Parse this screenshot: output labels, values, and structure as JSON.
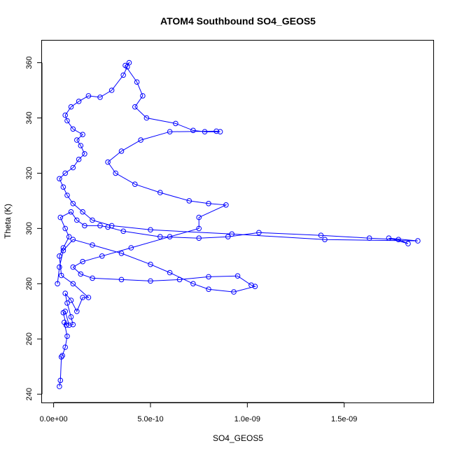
{
  "chart_data": {
    "type": "scatter",
    "title": "ATOM4 Southbound SO4_GEOS5",
    "xlabel": "SO4_GEOS5",
    "ylabel": "Theta (K)",
    "xlim": [
      -6e-11,
      1.96e-09
    ],
    "ylim": [
      237,
      368
    ],
    "x_ticks": [
      0,
      5e-10,
      1e-09,
      1.5e-09
    ],
    "x_tick_labels": [
      "0.0e+00",
      "5.0e-10",
      "1.0e-09",
      "1.5e-09"
    ],
    "y_ticks": [
      240,
      260,
      280,
      300,
      320,
      340,
      360
    ],
    "y_tick_labels": [
      "240",
      "260",
      "280",
      "300",
      "320",
      "340",
      "360"
    ],
    "grid": false,
    "legend": "none",
    "series": [
      {
        "color": "#0000ff",
        "marker": "open-circle",
        "line": true,
        "points": [
          [
            3e-11,
            242.8
          ],
          [
            3.5e-11,
            245.0
          ],
          [
            4e-11,
            253.5
          ],
          [
            4.5e-11,
            254.0
          ],
          [
            6e-11,
            257.0
          ],
          [
            7e-11,
            261.0
          ],
          [
            5.5e-11,
            266.0
          ],
          [
            6.5e-11,
            265.0
          ],
          [
            5e-11,
            269.5
          ],
          [
            6e-11,
            270.0
          ],
          [
            8e-11,
            265.0
          ],
          [
            1e-10,
            265.2
          ],
          [
            9e-11,
            268.0
          ],
          [
            7e-11,
            273.0
          ],
          [
            6e-11,
            276.5
          ],
          [
            9e-11,
            274.0
          ],
          [
            1.2e-10,
            270.0
          ],
          [
            1.5e-10,
            275.0
          ],
          [
            1.8e-10,
            275.0
          ],
          [
            1e-10,
            280.0
          ],
          [
            4e-11,
            283.0
          ],
          [
            3e-11,
            290.0
          ],
          [
            5e-11,
            293.0
          ],
          [
            8e-11,
            297.0
          ],
          [
            6e-11,
            300.0
          ],
          [
            3.5e-11,
            304.0
          ],
          [
            9e-11,
            306.0
          ],
          [
            1.2e-10,
            303.0
          ],
          [
            1.6e-10,
            301.0
          ],
          [
            2.4e-10,
            301.0
          ],
          [
            2.8e-10,
            300.5
          ],
          [
            3.6e-10,
            299.0
          ],
          [
            5.5e-10,
            297.0
          ],
          [
            7.5e-10,
            296.5
          ],
          [
            9e-10,
            297.0
          ],
          [
            1.06e-09,
            298.5
          ],
          [
            1.38e-09,
            297.5
          ],
          [
            1.63e-09,
            296.5
          ],
          [
            1.78e-09,
            296.0
          ],
          [
            1.83e-09,
            294.5
          ],
          [
            1.73e-09,
            296.5
          ],
          [
            1.88e-09,
            295.5
          ],
          [
            1.4e-09,
            296.0
          ],
          [
            9.2e-10,
            298.0
          ],
          [
            5e-10,
            299.5
          ],
          [
            3e-10,
            301.0
          ],
          [
            2e-10,
            303.0
          ],
          [
            1.5e-10,
            306.0
          ],
          [
            1e-10,
            309.0
          ],
          [
            7e-11,
            312.0
          ],
          [
            5e-11,
            315.0
          ],
          [
            3e-11,
            318.0
          ],
          [
            6e-11,
            320.0
          ],
          [
            1e-10,
            322.0
          ],
          [
            1.3e-10,
            325.0
          ],
          [
            1.6e-10,
            327.0
          ],
          [
            1.4e-10,
            330.0
          ],
          [
            1.2e-10,
            332.0
          ],
          [
            1.5e-10,
            334.0
          ],
          [
            1e-10,
            336.0
          ],
          [
            7e-11,
            339.0
          ],
          [
            6e-11,
            341.0
          ],
          [
            9e-11,
            344.0
          ],
          [
            1.3e-10,
            346.0
          ],
          [
            1.8e-10,
            348.0
          ],
          [
            2.4e-10,
            347.5
          ],
          [
            3e-10,
            350.0
          ],
          [
            3.6e-10,
            355.5
          ],
          [
            3.8e-10,
            358.5
          ],
          [
            3.9e-10,
            360.0
          ],
          [
            3.7e-10,
            359.0
          ],
          [
            4.3e-10,
            353.0
          ],
          [
            4.6e-10,
            348.0
          ],
          [
            4.2e-10,
            344.0
          ],
          [
            4.8e-10,
            340.0
          ],
          [
            6.3e-10,
            338.0
          ],
          [
            7.2e-10,
            335.5
          ],
          [
            7.8e-10,
            335.0
          ],
          [
            8.6e-10,
            335.0
          ],
          [
            8.4e-10,
            335.2
          ],
          [
            6e-10,
            335.0
          ],
          [
            4.5e-10,
            332.0
          ],
          [
            3.5e-10,
            328.0
          ],
          [
            2.8e-10,
            324.0
          ],
          [
            3.2e-10,
            320.0
          ],
          [
            4.2e-10,
            316.0
          ],
          [
            5.5e-10,
            313.0
          ],
          [
            7e-10,
            310.0
          ],
          [
            8e-10,
            309.0
          ],
          [
            8.9e-10,
            308.5
          ],
          [
            7.5e-10,
            304.0
          ],
          [
            7.5e-10,
            300.0
          ],
          [
            6e-10,
            297.0
          ],
          [
            4e-10,
            293.0
          ],
          [
            2.5e-10,
            290.0
          ],
          [
            1.5e-10,
            288.0
          ],
          [
            1e-10,
            286.0
          ],
          [
            1.4e-10,
            283.5
          ],
          [
            2e-10,
            282.0
          ],
          [
            3.5e-10,
            281.5
          ],
          [
            5e-10,
            281.0
          ],
          [
            6.5e-10,
            281.5
          ],
          [
            8e-10,
            282.5
          ],
          [
            9.5e-10,
            282.8
          ],
          [
            1.02e-09,
            279.5
          ],
          [
            1.04e-09,
            279.0
          ],
          [
            9.3e-10,
            277.0
          ],
          [
            8e-10,
            278.0
          ],
          [
            7.2e-10,
            280.0
          ],
          [
            6e-10,
            284.0
          ],
          [
            5e-10,
            287.0
          ],
          [
            3.5e-10,
            291.0
          ],
          [
            2e-10,
            294.0
          ],
          [
            1e-10,
            296.0
          ],
          [
            5e-11,
            292.0
          ],
          [
            3e-11,
            286.0
          ],
          [
            2e-11,
            280.0
          ]
        ]
      }
    ]
  }
}
